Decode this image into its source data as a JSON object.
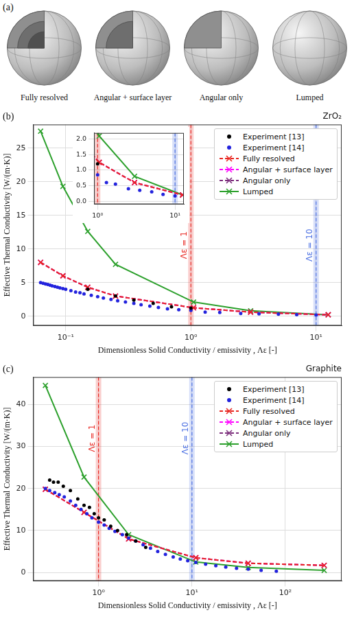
{
  "panel_a": {
    "label": "(a)",
    "items": [
      "Fully resolved",
      "Angular + surface layer",
      "Angular only",
      "Lumped"
    ]
  },
  "chart_data": [
    {
      "type": "line",
      "panel_label": "(b)",
      "title": "ZrO₂",
      "x_label": "Dimensionless Solid Conductivity / emissivity , Λε [-]",
      "y_label": "Effective Thermal Conductivity [W/(m·K)]",
      "log": "x",
      "grid": true,
      "legend": "upper right",
      "xlim": [
        0.055,
        16
      ],
      "ylim": [
        -1.4,
        28.5
      ],
      "xticks": [
        {
          "value": 0.1,
          "label": "10⁻¹"
        },
        {
          "value": 1,
          "label": "10⁰"
        },
        {
          "value": 10,
          "label": "10¹"
        }
      ],
      "yticks": [
        0,
        5,
        10,
        15,
        20,
        25
      ],
      "annotations": [
        {
          "type": "vline",
          "x": 1,
          "text": "Λε = 1",
          "color": "#e8251f"
        },
        {
          "type": "vline",
          "x": 10,
          "text": "Λε = 10",
          "color": "#4a6fe3"
        }
      ],
      "series": [
        {
          "name": "Experiment [13]",
          "type": "scatter",
          "color": "#000000",
          "marker": "circle",
          "line_style": "none",
          "x": [
            0.15,
            0.25,
            0.35,
            0.5,
            0.7,
            1.0
          ],
          "values": [
            4.0,
            3.0,
            2.4,
            1.9,
            1.4,
            1.2
          ]
        },
        {
          "name": "Experiment [14]",
          "type": "scatter",
          "color": "#2222dd",
          "marker": "circle",
          "line_style": "none",
          "x": [
            0.063,
            0.066,
            0.069,
            0.072,
            0.075,
            0.078,
            0.082,
            0.086,
            0.09,
            0.095,
            0.1,
            0.11,
            0.12,
            0.13,
            0.14,
            0.16,
            0.18,
            0.2,
            0.23,
            0.26,
            0.3,
            0.35,
            0.4,
            0.47,
            0.55,
            0.65,
            0.8,
            1.0,
            1.3,
            1.7,
            2.5,
            3.5,
            5,
            7,
            10
          ],
          "values": [
            5.0,
            4.9,
            4.8,
            4.7,
            4.6,
            4.5,
            4.4,
            4.3,
            4.2,
            4.1,
            4.0,
            3.8,
            3.6,
            3.5,
            3.3,
            3.1,
            2.9,
            2.7,
            2.5,
            2.3,
            2.1,
            1.9,
            1.7,
            1.5,
            1.3,
            1.1,
            0.95,
            0.85,
            0.6,
            0.55,
            0.4,
            0.35,
            0.3,
            0.22,
            0.17
          ]
        },
        {
          "name": "Fully resolved",
          "type": "line",
          "color": "#e8251f",
          "marker": "x",
          "line_style": "dashed",
          "x": [
            0.063,
            0.095,
            0.15,
            0.25,
            1.05,
            3.0,
            12.5
          ],
          "values": [
            8.0,
            6.0,
            4.3,
            3.0,
            1.25,
            0.6,
            0.2
          ]
        },
        {
          "name": "Angular + surface layer",
          "type": "line",
          "color": "#ff00ff",
          "marker": "x",
          "line_style": "dashed",
          "x": [
            0.063,
            0.095,
            0.15,
            0.25,
            1.05,
            3.0,
            12.5
          ],
          "values": [
            8.0,
            6.0,
            4.3,
            3.0,
            1.25,
            0.6,
            0.2
          ]
        },
        {
          "name": "Angular only",
          "type": "line",
          "color": "#7b2d7b",
          "marker": "x",
          "line_style": "dashed",
          "x": [
            0.063,
            0.095,
            0.15,
            0.25,
            1.05,
            3.0,
            12.5
          ],
          "values": [
            8.0,
            6.0,
            4.3,
            3.0,
            1.25,
            0.6,
            0.2
          ]
        },
        {
          "name": "Lumped",
          "type": "line",
          "color": "#2ca02c",
          "marker": "x",
          "line_style": "solid",
          "x": [
            0.063,
            0.095,
            0.15,
            0.25,
            1.05,
            3.0,
            12.5
          ],
          "values": [
            27.5,
            19.3,
            12.6,
            7.7,
            2.1,
            0.8,
            0.2
          ]
        }
      ],
      "inset": {
        "xlim": [
          0.9,
          13
        ],
        "ylim": [
          -0.1,
          2.2
        ],
        "xticks": [
          {
            "value": 1,
            "label": "10⁰"
          },
          {
            "value": 10,
            "label": "10¹"
          }
        ],
        "yticks": [
          {
            "value": 0,
            "label": "0.0"
          },
          {
            "value": 0.5,
            "label": "0.5"
          },
          {
            "value": 1,
            "label": "1.0"
          },
          {
            "value": 1.5,
            "label": "1.5"
          },
          {
            "value": 2,
            "label": "2.0"
          }
        ]
      }
    },
    {
      "type": "line",
      "panel_label": "(c)",
      "title": "Graphite",
      "x_label": "Dimensionless Solid Conductivity / emissivity , Λε [-]",
      "y_label": "Effective Thermal Conductivity [W/(m·K)]",
      "log": "x",
      "grid": true,
      "legend": "upper right",
      "xlim": [
        0.2,
        400
      ],
      "ylim": [
        -2,
        46.5
      ],
      "xticks": [
        {
          "value": 1,
          "label": "10⁰"
        },
        {
          "value": 10,
          "label": "10¹"
        },
        {
          "value": 100,
          "label": "10²"
        }
      ],
      "yticks": [
        0,
        10,
        20,
        30,
        40
      ],
      "annotations": [
        {
          "type": "vline",
          "x": 1,
          "text": "Λε = 1",
          "color": "#e8251f"
        },
        {
          "type": "vline",
          "x": 10,
          "text": "Λε = 10",
          "color": "#4a6fe3"
        }
      ],
      "series": [
        {
          "name": "Experiment [13]",
          "type": "scatter",
          "color": "#000000",
          "marker": "circle",
          "line_style": "none",
          "x": [
            0.3,
            0.33,
            0.37,
            0.42,
            0.5,
            0.6,
            0.7,
            0.8,
            0.9,
            1.0,
            1.15,
            1.35,
            1.6,
            2.0,
            2.5,
            3.2
          ],
          "values": [
            22,
            21.5,
            21.5,
            20.5,
            19.5,
            17.5,
            16,
            15.5,
            14,
            13,
            12.5,
            11,
            10,
            9,
            7.5,
            6
          ]
        },
        {
          "name": "Experiment [14]",
          "type": "scatter",
          "color": "#2222dd",
          "marker": "circle",
          "line_style": "none",
          "x": [
            0.27,
            0.3,
            0.34,
            0.38,
            0.43,
            0.5,
            0.57,
            0.65,
            0.75,
            0.85,
            1.0,
            1.15,
            1.3,
            1.5,
            1.8,
            2.1,
            2.5,
            3,
            3.6,
            4.3,
            5.2,
            6.3,
            7.5,
            9,
            11,
            14,
            18,
            23,
            30,
            40,
            55,
            80
          ],
          "values": [
            20,
            19.5,
            19,
            18.5,
            18,
            17,
            16,
            15,
            14,
            13,
            12,
            11.3,
            10.5,
            9.8,
            9,
            8.2,
            7.5,
            6.6,
            5.8,
            5,
            4.3,
            3.7,
            3.2,
            2.8,
            2.4,
            2.0,
            1.6,
            1.3,
            1.0,
            0.8,
            0.5,
            0.3
          ]
        },
        {
          "name": "Fully resolved",
          "type": "line",
          "color": "#e8251f",
          "marker": "x",
          "line_style": "dashed",
          "x": [
            0.27,
            0.7,
            2.1,
            11,
            40,
            260
          ],
          "values": [
            19.8,
            14.3,
            8.0,
            3.5,
            2.2,
            1.7
          ]
        },
        {
          "name": "Angular + surface layer",
          "type": "line",
          "color": "#ff00ff",
          "marker": "x",
          "line_style": "dashed",
          "x": [
            0.27,
            0.7,
            2.1,
            11,
            40,
            260
          ],
          "values": [
            19.8,
            14.3,
            8.0,
            3.5,
            2.2,
            1.7
          ]
        },
        {
          "name": "Angular only",
          "type": "line",
          "color": "#7b2d7b",
          "marker": "x",
          "line_style": "dashed",
          "x": [
            0.27,
            0.7,
            2.1,
            11,
            40,
            260
          ],
          "values": [
            19.8,
            14.3,
            8.0,
            3.5,
            2.2,
            1.7
          ]
        },
        {
          "name": "Lumped",
          "type": "line",
          "color": "#2ca02c",
          "marker": "x",
          "line_style": "solid",
          "x": [
            0.27,
            0.7,
            2.1,
            11,
            40,
            260
          ],
          "values": [
            44.5,
            22.7,
            9.0,
            2.5,
            1.2,
            0.5
          ]
        }
      ]
    }
  ]
}
